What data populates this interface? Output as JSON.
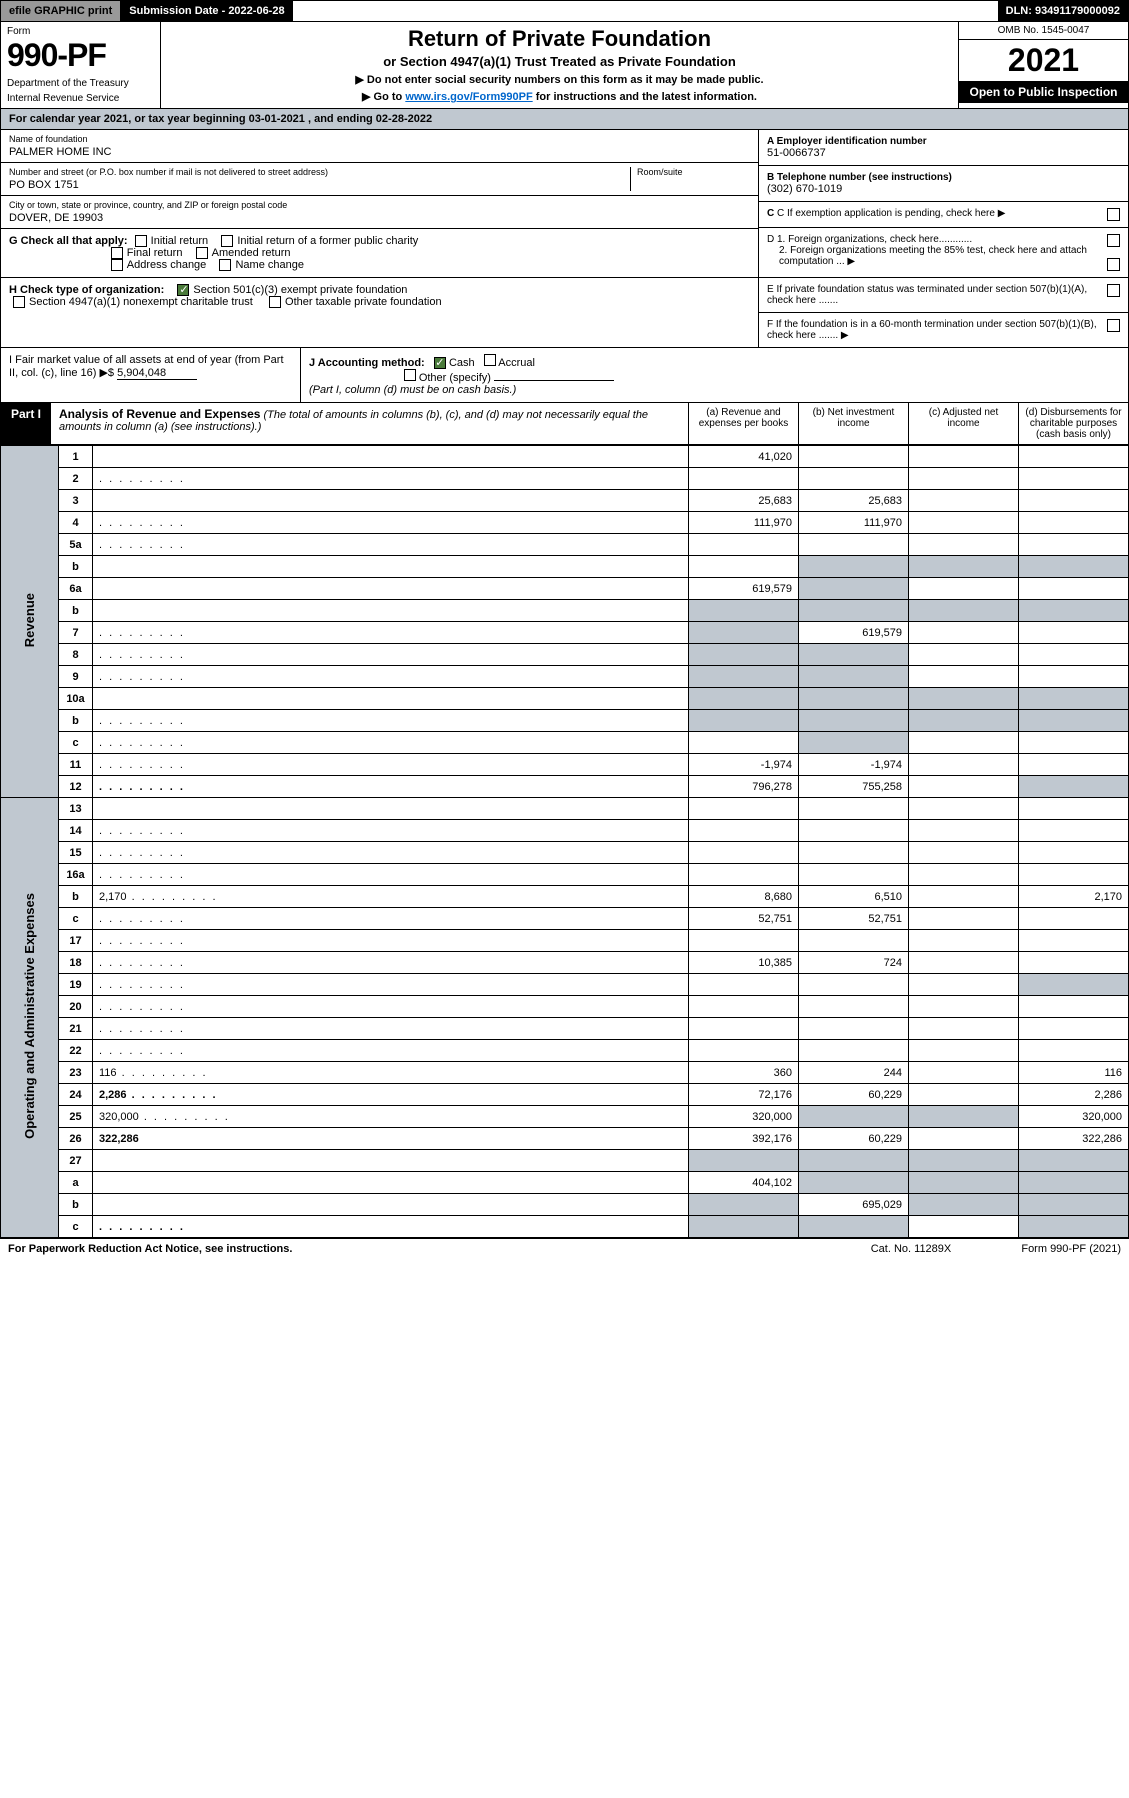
{
  "topbar": {
    "efile": "efile GRAPHIC print",
    "submission": "Submission Date - 2022-06-28",
    "dln": "DLN: 93491179000092"
  },
  "header": {
    "form_word": "Form",
    "form_num": "990-PF",
    "dept": "Department of the Treasury",
    "irs": "Internal Revenue Service",
    "title": "Return of Private Foundation",
    "subtitle": "or Section 4947(a)(1) Trust Treated as Private Foundation",
    "note1": "▶ Do not enter social security numbers on this form as it may be made public.",
    "note2_pre": "▶ Go to ",
    "note2_link": "www.irs.gov/Form990PF",
    "note2_post": " for instructions and the latest information.",
    "omb": "OMB No. 1545-0047",
    "year": "2021",
    "open": "Open to Public Inspection"
  },
  "cal": "For calendar year 2021, or tax year beginning 03-01-2021            , and ending 02-28-2022",
  "meta": {
    "name_lbl": "Name of foundation",
    "name_val": "PALMER HOME INC",
    "addr_lbl": "Number and street (or P.O. box number if mail is not delivered to street address)",
    "room_lbl": "Room/suite",
    "addr_val": "PO BOX 1751",
    "city_lbl": "City or town, state or province, country, and ZIP or foreign postal code",
    "city_val": "DOVER, DE  19903",
    "a_lbl": "A Employer identification number",
    "a_val": "51-0066737",
    "b_lbl": "B Telephone number (see instructions)",
    "b_val": "(302) 670-1019",
    "c_lbl": "C If exemption application is pending, check here ▶",
    "d1": "D 1. Foreign organizations, check here............",
    "d2": "2. Foreign organizations meeting the 85% test, check here and attach computation ...  ▶",
    "e": "E  If private foundation status was terminated under section 507(b)(1)(A), check here .......",
    "f": "F  If the foundation is in a 60-month termination under section 507(b)(1)(B), check here .......  ▶"
  },
  "g": {
    "label": "G Check all that apply:",
    "opts": [
      "Initial return",
      "Initial return of a former public charity",
      "Final return",
      "Amended return",
      "Address change",
      "Name change"
    ]
  },
  "h": {
    "label": "H Check type of organization:",
    "o1": "Section 501(c)(3) exempt private foundation",
    "o2": "Section 4947(a)(1) nonexempt charitable trust",
    "o3": "Other taxable private foundation"
  },
  "i": {
    "label": "I Fair market value of all assets at end of year (from Part II, col. (c), line 16) ▶$",
    "val": "5,904,048"
  },
  "j": {
    "label": "J Accounting method:",
    "o1": "Cash",
    "o2": "Accrual",
    "o3": "Other (specify)",
    "note": "(Part I, column (d) must be on cash basis.)"
  },
  "part1": {
    "num": "Part I",
    "title": "Analysis of Revenue and Expenses",
    "note": " (The total of amounts in columns (b), (c), and (d) may not necessarily equal the amounts in column (a) (see instructions).)",
    "col_a": "(a)    Revenue and expenses per books",
    "col_b": "(b)    Net investment income",
    "col_c": "(c)   Adjusted net income",
    "col_d": "(d)   Disbursements for charitable purposes (cash basis only)"
  },
  "side": {
    "rev": "Revenue",
    "exp": "Operating and Administrative Expenses"
  },
  "rows": [
    {
      "n": "1",
      "d": "",
      "a": "41,020",
      "b": "",
      "c": ""
    },
    {
      "n": "2",
      "d": "",
      "dots": true,
      "a": "",
      "b": "",
      "c": ""
    },
    {
      "n": "3",
      "d": "",
      "a": "25,683",
      "b": "25,683",
      "c": ""
    },
    {
      "n": "4",
      "d": "",
      "dots": true,
      "a": "111,970",
      "b": "111,970",
      "c": ""
    },
    {
      "n": "5a",
      "d": "",
      "dots": true,
      "a": "",
      "b": "",
      "c": ""
    },
    {
      "n": "b",
      "d": "",
      "a": "",
      "b": "",
      "c": "",
      "grey_bcd": true
    },
    {
      "n": "6a",
      "d": "",
      "a": "619,579",
      "b": "",
      "c": "",
      "grey_b": true
    },
    {
      "n": "b",
      "d": "",
      "a": "",
      "b": "",
      "c": "",
      "grey_all": true
    },
    {
      "n": "7",
      "d": "",
      "dots": true,
      "a": "",
      "b": "619,579",
      "c": "",
      "grey_a": true
    },
    {
      "n": "8",
      "d": "",
      "dots": true,
      "a": "",
      "b": "",
      "c": "",
      "grey_ab": true
    },
    {
      "n": "9",
      "d": "",
      "dots": true,
      "a": "",
      "b": "",
      "c": "",
      "grey_ab": true
    },
    {
      "n": "10a",
      "d": "",
      "a": "",
      "b": "",
      "c": "",
      "grey_all": true
    },
    {
      "n": "b",
      "d": "",
      "dots": true,
      "a": "",
      "b": "",
      "c": "",
      "grey_all": true
    },
    {
      "n": "c",
      "d": "",
      "dots": true,
      "a": "",
      "b": "",
      "c": "",
      "grey_b": true
    },
    {
      "n": "11",
      "d": "",
      "dots": true,
      "a": "-1,974",
      "b": "-1,974",
      "c": ""
    },
    {
      "n": "12",
      "d": "",
      "dots": true,
      "bold": true,
      "a": "796,278",
      "b": "755,258",
      "c": "",
      "grey_d": true
    },
    {
      "n": "13",
      "d": "",
      "a": "",
      "b": "",
      "c": ""
    },
    {
      "n": "14",
      "d": "",
      "dots": true,
      "a": "",
      "b": "",
      "c": ""
    },
    {
      "n": "15",
      "d": "",
      "dots": true,
      "a": "",
      "b": "",
      "c": ""
    },
    {
      "n": "16a",
      "d": "",
      "dots": true,
      "a": "",
      "b": "",
      "c": ""
    },
    {
      "n": "b",
      "d": "2,170",
      "dots": true,
      "a": "8,680",
      "b": "6,510",
      "c": ""
    },
    {
      "n": "c",
      "d": "",
      "dots": true,
      "a": "52,751",
      "b": "52,751",
      "c": ""
    },
    {
      "n": "17",
      "d": "",
      "dots": true,
      "a": "",
      "b": "",
      "c": ""
    },
    {
      "n": "18",
      "d": "",
      "dots": true,
      "a": "10,385",
      "b": "724",
      "c": ""
    },
    {
      "n": "19",
      "d": "",
      "dots": true,
      "a": "",
      "b": "",
      "c": "",
      "grey_d": true
    },
    {
      "n": "20",
      "d": "",
      "dots": true,
      "a": "",
      "b": "",
      "c": ""
    },
    {
      "n": "21",
      "d": "",
      "dots": true,
      "a": "",
      "b": "",
      "c": ""
    },
    {
      "n": "22",
      "d": "",
      "dots": true,
      "a": "",
      "b": "",
      "c": ""
    },
    {
      "n": "23",
      "d": "116",
      "dots": true,
      "a": "360",
      "b": "244",
      "c": ""
    },
    {
      "n": "24",
      "d": "2,286",
      "dots": true,
      "bold": true,
      "a": "72,176",
      "b": "60,229",
      "c": ""
    },
    {
      "n": "25",
      "d": "320,000",
      "dots": true,
      "a": "320,000",
      "b": "",
      "c": "",
      "grey_bc": true
    },
    {
      "n": "26",
      "d": "322,286",
      "bold": true,
      "a": "392,176",
      "b": "60,229",
      "c": ""
    },
    {
      "n": "27",
      "d": "",
      "a": "",
      "b": "",
      "c": "",
      "grey_all": true
    },
    {
      "n": "a",
      "d": "",
      "bold": true,
      "a": "404,102",
      "b": "",
      "c": "",
      "grey_bcd": true
    },
    {
      "n": "b",
      "d": "",
      "bold": true,
      "a": "",
      "b": "695,029",
      "c": "",
      "grey_a": true,
      "grey_cd": true
    },
    {
      "n": "c",
      "d": "",
      "dots": true,
      "bold": true,
      "a": "",
      "b": "",
      "c": "",
      "grey_ab": true,
      "grey_d": true
    }
  ],
  "footer": {
    "l": "For Paperwork Reduction Act Notice, see instructions.",
    "m": "Cat. No. 11289X",
    "r": "Form 990-PF (2021)"
  },
  "colors": {
    "grey": "#c0c8d0",
    "black": "#000000",
    "link": "#0066cc",
    "check": "#4a7a3a"
  }
}
